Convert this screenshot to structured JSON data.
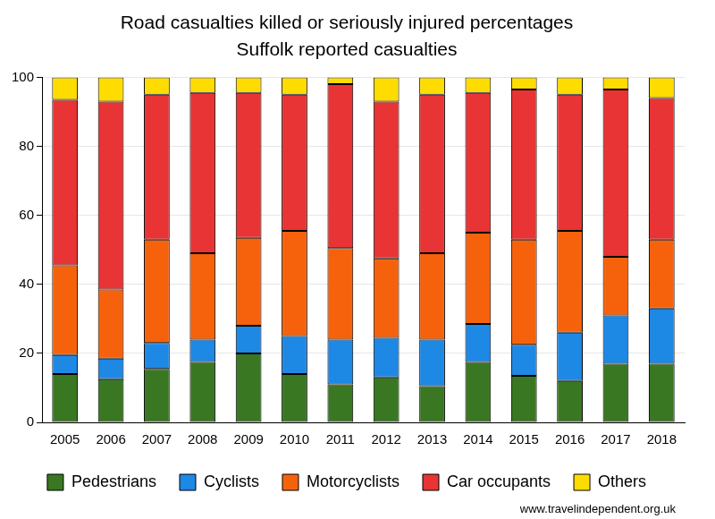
{
  "chart_data": {
    "type": "bar",
    "title": "Road casualties killed or seriously injured percentages",
    "subtitle": "Suffolk reported casualties",
    "annotations": [
      "www.travelindependent.org.uk"
    ],
    "categories": [
      "2005",
      "2006",
      "2007",
      "2008",
      "2009",
      "2010",
      "2011",
      "2012",
      "2013",
      "2014",
      "2015",
      "2016",
      "2017",
      "2018"
    ],
    "series": [
      {
        "name": "Pedestrians",
        "color": "#3a7723",
        "values": [
          14,
          12.5,
          15.5,
          17.5,
          20,
          14,
          11,
          13,
          10.5,
          17.5,
          13.5,
          12,
          17,
          17
        ]
      },
      {
        "name": "Cyclists",
        "color": "#1e88e5",
        "values": [
          5.5,
          6,
          7.5,
          6.5,
          8,
          11,
          13,
          11.5,
          13.5,
          11,
          9,
          14,
          14,
          16
        ]
      },
      {
        "name": "Motorcyclists",
        "color": "#f6620c",
        "values": [
          26,
          20,
          30,
          25,
          25.5,
          30.5,
          26.5,
          23,
          25,
          26.5,
          30.5,
          29.5,
          17,
          20
        ]
      },
      {
        "name": "Car occupants",
        "color": "#e83434",
        "values": [
          48,
          54.5,
          42,
          46.5,
          42,
          39.5,
          47.5,
          45.5,
          46,
          40.5,
          43.5,
          39.5,
          48.5,
          41
        ]
      },
      {
        "name": "Others",
        "color": "#ffdc00",
        "values": [
          6.5,
          7,
          5,
          4.5,
          4.5,
          5,
          2,
          7,
          5,
          4.5,
          3.5,
          5,
          3.5,
          6
        ]
      }
    ],
    "ylim": [
      0,
      100
    ],
    "yticks": [
      0,
      20,
      40,
      60,
      80,
      100
    ],
    "grid": true,
    "stacked": true,
    "legend": "bottom"
  }
}
